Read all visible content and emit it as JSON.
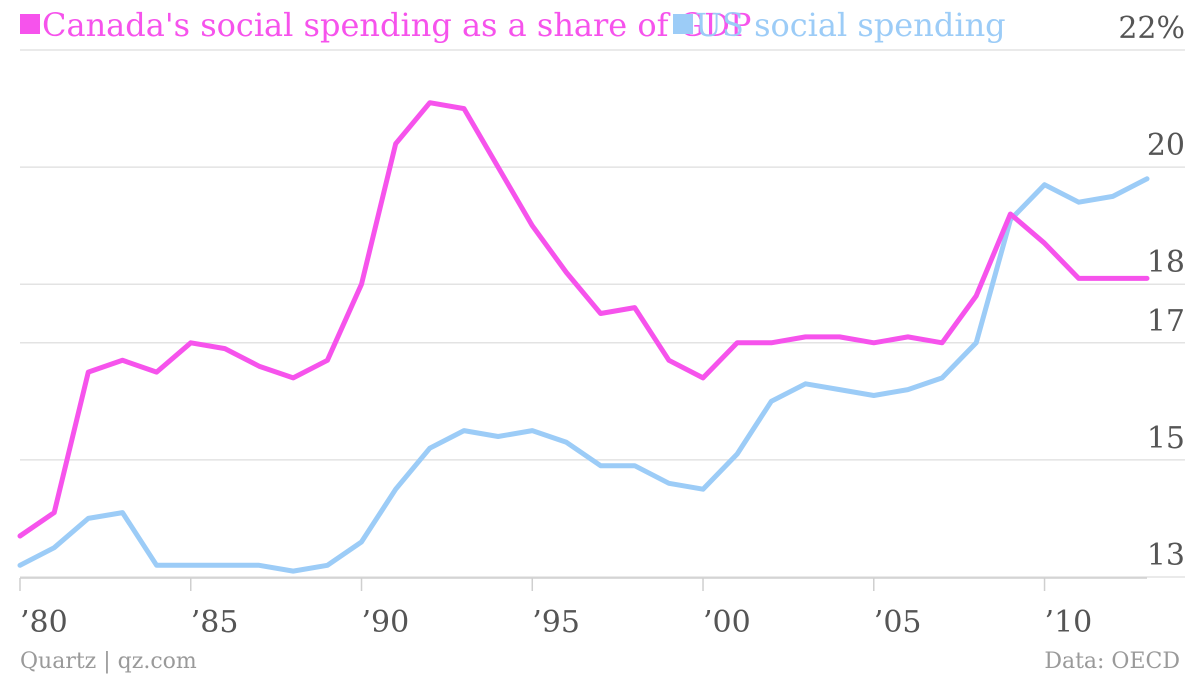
{
  "colors": {
    "canada": "#f653ec",
    "us": "#9cccf7",
    "grid": "#e3e3e3",
    "axis": "#cfcfcf",
    "tick_text": "#555555",
    "footer_text": "#9a9a9a"
  },
  "footer": {
    "source_left": "Quartz | qz.com",
    "source_right": "Data: OECD"
  },
  "chart_data": {
    "type": "line",
    "title": "",
    "legend_placement": "top-left",
    "grid": true,
    "xlim": [
      1980,
      2013
    ],
    "ylim": [
      13,
      22
    ],
    "x_ticks": [
      1980,
      1985,
      1990,
      1995,
      2000,
      2005,
      2010
    ],
    "x_tick_labels": [
      "’80",
      "’85",
      "’90",
      "’95",
      "’00",
      "’05",
      "’10"
    ],
    "y_ticks": [
      13,
      15,
      17,
      18,
      20,
      22
    ],
    "y_tick_labels": [
      "13",
      "15",
      "17",
      "18",
      "20",
      "22%"
    ],
    "x": [
      1980,
      1981,
      1982,
      1983,
      1984,
      1985,
      1986,
      1987,
      1988,
      1989,
      1990,
      1991,
      1992,
      1993,
      1994,
      1995,
      1996,
      1997,
      1998,
      1999,
      2000,
      2001,
      2002,
      2003,
      2004,
      2005,
      2006,
      2007,
      2008,
      2009,
      2010,
      2011,
      2012,
      2013
    ],
    "series": [
      {
        "name": "Canada's social spending as a share of GDP",
        "color": "#f653ec",
        "values": [
          13.7,
          14.1,
          16.5,
          16.7,
          16.5,
          17.0,
          16.9,
          16.6,
          16.4,
          16.7,
          18.0,
          20.4,
          21.1,
          21.0,
          20.0,
          19.0,
          18.2,
          17.5,
          17.6,
          16.7,
          16.4,
          17.0,
          17.0,
          17.1,
          17.1,
          17.0,
          17.1,
          17.0,
          17.8,
          19.2,
          18.7,
          18.1,
          18.1,
          18.1
        ]
      },
      {
        "name": "US social spending",
        "color": "#9cccf7",
        "values": [
          13.2,
          13.5,
          14.0,
          14.1,
          13.2,
          13.2,
          13.2,
          13.2,
          13.1,
          13.2,
          13.6,
          14.5,
          15.2,
          15.5,
          15.4,
          15.5,
          15.3,
          14.9,
          14.9,
          14.6,
          14.5,
          15.1,
          16.0,
          16.3,
          16.2,
          16.1,
          16.2,
          16.4,
          17.0,
          19.1,
          19.7,
          19.4,
          19.5,
          19.8
        ]
      }
    ]
  }
}
